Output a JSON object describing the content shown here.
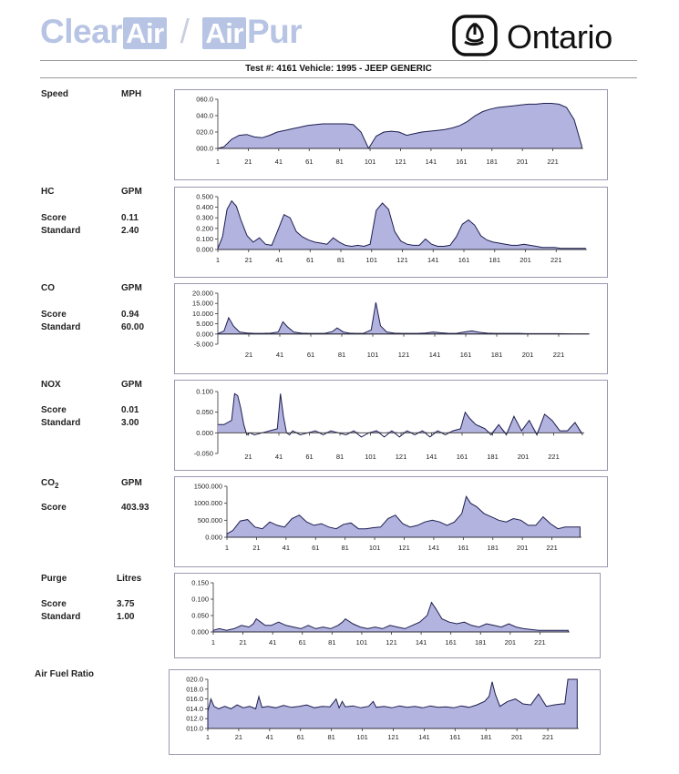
{
  "logo": {
    "brand_left_a": "Clear",
    "brand_left_b": "Air",
    "separator": "/",
    "brand_right_a": "Air",
    "brand_right_b": "Pur",
    "government": "Ontario"
  },
  "header": {
    "title": "Test #:  4161 Vehicle:  1995 - JEEP GENERIC"
  },
  "chart_data": [
    {
      "id": "speed",
      "type": "area",
      "title": "Speed",
      "unit": "MPH",
      "ylim": [
        0,
        60
      ],
      "yticks": [
        0,
        20,
        40,
        60
      ],
      "ytick_labels": [
        "000.0",
        "020.0",
        "040.0",
        "060.0"
      ],
      "xlim": [
        1,
        241
      ],
      "xticks": [
        1,
        21,
        41,
        61,
        81,
        101,
        121,
        141,
        161,
        181,
        201,
        221
      ],
      "x": [
        1,
        5,
        10,
        15,
        20,
        25,
        30,
        35,
        40,
        45,
        50,
        55,
        60,
        65,
        70,
        75,
        80,
        85,
        90,
        95,
        100,
        105,
        110,
        115,
        120,
        125,
        130,
        135,
        140,
        145,
        150,
        155,
        160,
        165,
        170,
        175,
        180,
        185,
        190,
        195,
        200,
        205,
        210,
        215,
        220,
        225,
        230,
        235,
        240
      ],
      "values": [
        0,
        2,
        11,
        16,
        17,
        14,
        13,
        16,
        20,
        22,
        24,
        26,
        28,
        29,
        30,
        30,
        30,
        30,
        29,
        20,
        0,
        15,
        20,
        21,
        20,
        16,
        18,
        20,
        21,
        22,
        23,
        25,
        28,
        33,
        40,
        45,
        48,
        50,
        51,
        52,
        53,
        54,
        54,
        55,
        55,
        54,
        50,
        35,
        3
      ],
      "score": "",
      "standard": ""
    },
    {
      "id": "hc",
      "type": "area",
      "title": "HC",
      "unit": "GPM",
      "ylim": [
        0,
        0.5
      ],
      "yticks": [
        0,
        0.1,
        0.2,
        0.3,
        0.4,
        0.5
      ],
      "ytick_labels": [
        "0.000",
        "0.100",
        "0.200",
        "0.300",
        "0.400",
        "0.500"
      ],
      "xlim": [
        1,
        241
      ],
      "xticks": [
        1,
        21,
        41,
        61,
        81,
        101,
        121,
        141,
        161,
        181,
        201,
        221
      ],
      "x": [
        1,
        4,
        7,
        10,
        13,
        16,
        20,
        24,
        28,
        32,
        36,
        40,
        44,
        48,
        52,
        56,
        60,
        64,
        68,
        72,
        76,
        80,
        84,
        88,
        92,
        96,
        100,
        104,
        108,
        112,
        116,
        120,
        124,
        128,
        132,
        136,
        140,
        144,
        148,
        152,
        156,
        160,
        164,
        168,
        172,
        176,
        180,
        184,
        188,
        192,
        196,
        200,
        204,
        208,
        212,
        216,
        220,
        224,
        228,
        232,
        236,
        240
      ],
      "values": [
        0.01,
        0.12,
        0.38,
        0.46,
        0.41,
        0.28,
        0.13,
        0.07,
        0.11,
        0.05,
        0.04,
        0.18,
        0.33,
        0.3,
        0.17,
        0.12,
        0.09,
        0.07,
        0.06,
        0.05,
        0.11,
        0.07,
        0.04,
        0.03,
        0.04,
        0.03,
        0.05,
        0.37,
        0.44,
        0.38,
        0.17,
        0.08,
        0.05,
        0.04,
        0.04,
        0.1,
        0.05,
        0.03,
        0.03,
        0.04,
        0.12,
        0.24,
        0.28,
        0.23,
        0.13,
        0.09,
        0.07,
        0.06,
        0.05,
        0.04,
        0.04,
        0.05,
        0.04,
        0.03,
        0.02,
        0.02,
        0.02,
        0.01,
        0.01,
        0.01,
        0.01,
        0.01
      ],
      "score": "0.11",
      "standard": "2.40"
    },
    {
      "id": "co",
      "type": "area",
      "title": "CO",
      "unit": "GPM",
      "ylim": [
        -5,
        20
      ],
      "yticks": [
        -5,
        0,
        5,
        10,
        15,
        20
      ],
      "ytick_labels": [
        "-5.000",
        "0.000",
        "5.000",
        "10.000",
        "15.000",
        "20.000"
      ],
      "xlim": [
        1,
        241
      ],
      "xticks": [
        21,
        41,
        61,
        81,
        101,
        121,
        141,
        161,
        181,
        201,
        221
      ],
      "x": [
        1,
        5,
        8,
        11,
        15,
        20,
        25,
        30,
        35,
        40,
        43,
        46,
        50,
        55,
        60,
        65,
        70,
        75,
        78,
        82,
        86,
        90,
        95,
        100,
        103,
        106,
        110,
        115,
        120,
        125,
        130,
        135,
        140,
        145,
        150,
        155,
        160,
        165,
        170,
        175,
        180,
        185,
        190,
        195,
        200,
        205,
        210,
        220,
        230,
        240
      ],
      "values": [
        0.2,
        1.5,
        8.0,
        4.0,
        1.0,
        0.5,
        0.3,
        0.3,
        0.4,
        1.0,
        6.0,
        3.5,
        1.0,
        0.4,
        0.3,
        0.3,
        0.3,
        1.2,
        3.0,
        1.0,
        0.4,
        0.3,
        0.3,
        2.0,
        15.5,
        4.0,
        1.0,
        0.4,
        0.3,
        0.3,
        0.3,
        0.5,
        1.0,
        0.6,
        0.3,
        0.3,
        1.0,
        1.5,
        0.8,
        0.4,
        0.3,
        0.3,
        0.3,
        0.3,
        0.2,
        0.2,
        0.2,
        0.2,
        0.1,
        0.1
      ],
      "score": "0.94",
      "standard": "60.00"
    },
    {
      "id": "nox",
      "type": "line",
      "title": "NOX",
      "unit": "GPM",
      "ylim": [
        -0.05,
        0.1
      ],
      "yticks": [
        -0.05,
        0,
        0.05,
        0.1
      ],
      "ytick_labels": [
        "-0.050",
        "0.000",
        "0.050",
        "0.100"
      ],
      "xlim": [
        1,
        241
      ],
      "xticks": [
        21,
        41,
        61,
        81,
        101,
        121,
        141,
        161,
        181,
        201,
        221
      ],
      "x": [
        1,
        5,
        10,
        12,
        14,
        16,
        18,
        20,
        22,
        25,
        30,
        35,
        40,
        42,
        44,
        46,
        48,
        50,
        55,
        60,
        65,
        70,
        75,
        80,
        85,
        90,
        95,
        100,
        105,
        110,
        115,
        120,
        125,
        130,
        135,
        140,
        145,
        150,
        155,
        160,
        163,
        166,
        170,
        173,
        176,
        180,
        185,
        190,
        195,
        200,
        205,
        210,
        215,
        220,
        225,
        230,
        235,
        240
      ],
      "values": [
        0.02,
        0.02,
        0.03,
        0.095,
        0.09,
        0.06,
        0.02,
        -0.005,
        0,
        -0.005,
        0,
        0.005,
        0.01,
        0.095,
        0.04,
        0,
        -0.005,
        0.005,
        -0.005,
        0,
        0.005,
        -0.005,
        0.005,
        0,
        -0.005,
        0.005,
        -0.01,
        0,
        0.005,
        -0.01,
        0.005,
        -0.01,
        0.005,
        -0.005,
        0.005,
        -0.01,
        0.005,
        -0.005,
        0.005,
        0.01,
        0.05,
        0.035,
        0.02,
        0.015,
        0.01,
        -0.005,
        0.02,
        -0.005,
        0.04,
        0.005,
        0.03,
        -0.005,
        0.045,
        0.03,
        0.005,
        0.005,
        0.025,
        -0.005
      ],
      "score": "0.01",
      "standard": "3.00"
    },
    {
      "id": "co2",
      "type": "area",
      "title": "CO2",
      "unit": "GPM",
      "ylim": [
        0,
        1500
      ],
      "yticks": [
        0,
        500,
        1000,
        1500
      ],
      "ytick_labels": [
        "0.000",
        "500.000",
        "1000.000",
        "1500.000"
      ],
      "xlim": [
        1,
        241
      ],
      "xticks": [
        1,
        21,
        41,
        61,
        81,
        101,
        121,
        141,
        161,
        181,
        201,
        221
      ],
      "x": [
        1,
        5,
        10,
        15,
        20,
        25,
        30,
        35,
        40,
        45,
        50,
        55,
        60,
        65,
        70,
        75,
        80,
        85,
        90,
        95,
        100,
        105,
        110,
        115,
        120,
        125,
        130,
        135,
        140,
        145,
        150,
        155,
        160,
        163,
        166,
        170,
        175,
        180,
        185,
        190,
        195,
        200,
        205,
        210,
        215,
        220,
        225,
        230,
        235,
        240
      ],
      "values": [
        100,
        200,
        480,
        520,
        300,
        250,
        450,
        350,
        300,
        550,
        650,
        450,
        350,
        400,
        300,
        250,
        380,
        420,
        250,
        250,
        280,
        300,
        550,
        650,
        400,
        300,
        350,
        450,
        500,
        450,
        350,
        450,
        700,
        1200,
        1000,
        900,
        700,
        600,
        500,
        450,
        550,
        500,
        350,
        350,
        600,
        400,
        250,
        300,
        300,
        300
      ],
      "score": "403.93",
      "standard": ""
    },
    {
      "id": "purge",
      "type": "area",
      "title": "Purge",
      "unit": "Litres",
      "ylim": [
        0,
        0.15
      ],
      "yticks": [
        0,
        0.05,
        0.1,
        0.15
      ],
      "ytick_labels": [
        "0.000",
        "0.050",
        "0.100",
        "0.150"
      ],
      "xlim": [
        1,
        241
      ],
      "xticks": [
        1,
        21,
        41,
        61,
        81,
        101,
        121,
        141,
        161,
        181,
        201,
        221
      ],
      "x": [
        1,
        5,
        10,
        15,
        20,
        25,
        28,
        30,
        33,
        36,
        40,
        45,
        50,
        55,
        60,
        65,
        70,
        75,
        80,
        85,
        88,
        90,
        95,
        100,
        105,
        110,
        115,
        120,
        125,
        130,
        135,
        140,
        145,
        148,
        151,
        155,
        160,
        165,
        170,
        175,
        180,
        185,
        190,
        195,
        200,
        205,
        210,
        220,
        230,
        240
      ],
      "values": [
        0.005,
        0.01,
        0.005,
        0.01,
        0.02,
        0.015,
        0.025,
        0.04,
        0.03,
        0.02,
        0.02,
        0.03,
        0.02,
        0.015,
        0.01,
        0.02,
        0.01,
        0.015,
        0.01,
        0.02,
        0.03,
        0.04,
        0.025,
        0.015,
        0.01,
        0.015,
        0.01,
        0.02,
        0.015,
        0.01,
        0.02,
        0.03,
        0.05,
        0.09,
        0.07,
        0.04,
        0.03,
        0.025,
        0.03,
        0.02,
        0.015,
        0.025,
        0.02,
        0.015,
        0.025,
        0.015,
        0.01,
        0.005,
        0.005,
        0.005
      ],
      "score": "3.75",
      "standard": "1.00"
    },
    {
      "id": "afr",
      "type": "area",
      "title": "Air Fuel Ratio",
      "unit": "",
      "ylim": [
        10,
        20
      ],
      "yticks": [
        10,
        12,
        14,
        16,
        18,
        20
      ],
      "ytick_labels": [
        "010.0",
        "012.0",
        "014.0",
        "016.0",
        "018.0",
        "020.0"
      ],
      "xlim": [
        1,
        241
      ],
      "xticks": [
        1,
        21,
        41,
        61,
        81,
        101,
        121,
        141,
        161,
        181,
        201,
        221
      ],
      "x": [
        1,
        3,
        5,
        8,
        12,
        16,
        20,
        24,
        28,
        32,
        34,
        36,
        40,
        45,
        50,
        55,
        60,
        65,
        70,
        75,
        80,
        84,
        86,
        88,
        90,
        95,
        100,
        105,
        108,
        110,
        115,
        120,
        125,
        130,
        135,
        140,
        145,
        150,
        155,
        160,
        165,
        170,
        175,
        180,
        183,
        185,
        187,
        190,
        195,
        200,
        205,
        210,
        215,
        220,
        225,
        230,
        232,
        234,
        236,
        240
      ],
      "values": [
        13.5,
        16.0,
        14.5,
        14.0,
        14.5,
        14.0,
        14.8,
        14.2,
        14.5,
        14.0,
        16.5,
        14.3,
        14.5,
        14.2,
        14.7,
        14.3,
        14.5,
        14.8,
        14.2,
        14.5,
        14.4,
        16.0,
        14.2,
        15.5,
        14.4,
        14.6,
        14.2,
        14.5,
        15.5,
        14.3,
        14.5,
        14.2,
        14.6,
        14.3,
        14.5,
        14.2,
        14.6,
        14.3,
        14.4,
        14.2,
        14.6,
        14.3,
        14.8,
        15.5,
        16.5,
        19.5,
        17.0,
        14.5,
        15.5,
        16.0,
        15.0,
        14.8,
        17.0,
        14.5,
        14.8,
        15.0,
        15.0,
        20.0,
        20.0,
        20.0
      ],
      "score": "",
      "standard": ""
    }
  ],
  "labels": {
    "score": "Score",
    "standard": "Standard"
  }
}
